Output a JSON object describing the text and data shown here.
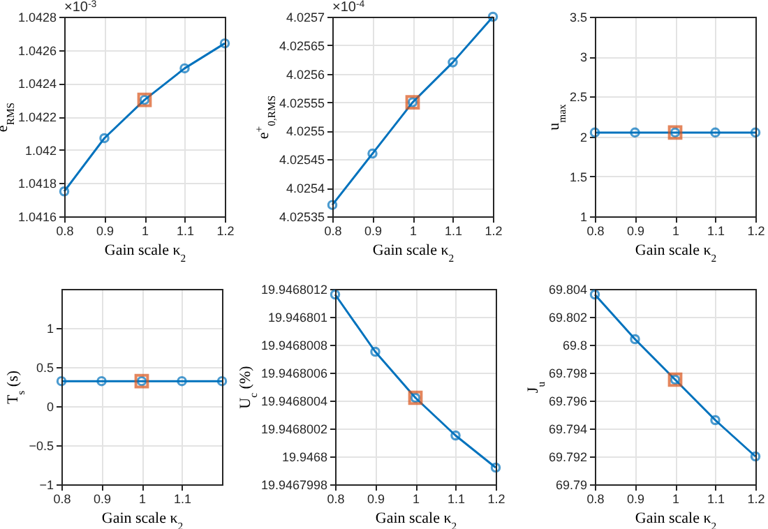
{
  "chart_data": [
    {
      "type": "line",
      "x": [
        0.8,
        0.9,
        1,
        1.1,
        1.2
      ],
      "xlabel": "Gain scale κ$_{2}$",
      "ylabel": "e$_{RMS}$",
      "annotations": [
        "×10$^{-3}$"
      ],
      "xlim": [
        0.8,
        1.2
      ],
      "xticks": [
        0.8,
        0.9,
        1,
        1.1,
        1.2
      ],
      "ylim": [
        1.0416,
        1.0428
      ],
      "yticks": [
        1.0416,
        1.0418,
        1.042,
        1.0422,
        1.0424,
        1.0426,
        1.0428
      ],
      "grid": true,
      "series": [
        {
          "color": "#0072bd",
          "marker": "circle",
          "values": [
            1.04175,
            1.04207,
            1.0423,
            1.04249,
            1.04264
          ]
        },
        {
          "type": "scatter",
          "color": "#d95319",
          "marker": "square",
          "values": [
            null,
            null,
            1.0423,
            null,
            null
          ]
        }
      ]
    },
    {
      "type": "line",
      "x": [
        0.8,
        0.9,
        1,
        1.1,
        1.2
      ],
      "xlabel": "Gain scale κ$_{2}$",
      "ylabel": "e$^{+}$$_{0,RMS}$",
      "annotations": [
        "×10$^{-4}$"
      ],
      "xlim": [
        0.8,
        1.2
      ],
      "xticks": [
        0.8,
        0.9,
        1,
        1.1,
        1.2
      ],
      "ylim": [
        4.02535,
        4.0257
      ],
      "yticks": [
        4.02535,
        4.0254,
        4.02545,
        4.0255,
        4.02555,
        4.0256,
        4.02565,
        4.0257
      ],
      "grid": true,
      "series": [
        {
          "color": "#0072bd",
          "marker": "circle",
          "values": [
            4.02537,
            4.02546,
            4.02555,
            4.02562,
            4.0257
          ]
        },
        {
          "type": "scatter",
          "color": "#d95319",
          "marker": "square",
          "values": [
            null,
            null,
            4.02555,
            null,
            null
          ]
        }
      ]
    },
    {
      "type": "line",
      "x": [
        0.8,
        0.9,
        1,
        1.1,
        1.2
      ],
      "xlabel": "Gain scale κ$_{2}$",
      "ylabel": "u$_{max}$",
      "xlim": [
        0.8,
        1.2
      ],
      "xticks": [
        0.8,
        0.9,
        1,
        1.1,
        1.2
      ],
      "ylim": [
        1,
        3.5
      ],
      "yticks": [
        1,
        1.5,
        2,
        2.5,
        3,
        3.5
      ],
      "grid": true,
      "series": [
        {
          "color": "#0072bd",
          "marker": "circle",
          "values": [
            2.05,
            2.05,
            2.05,
            2.05,
            2.05
          ]
        },
        {
          "type": "scatter",
          "color": "#d95319",
          "marker": "square",
          "values": [
            null,
            null,
            2.05,
            null,
            null
          ]
        }
      ]
    },
    {
      "type": "line",
      "x": [
        0.8,
        0.9,
        1,
        1.1,
        1.2
      ],
      "xlabel": "Gain scale κ$_{2}$",
      "ylabel": "T$_{s}$ (s)",
      "xlim": [
        0.8,
        1.2
      ],
      "xticks": [
        0.8,
        0.9,
        1,
        1.1
      ],
      "ylim": [
        -1,
        1.5
      ],
      "yticks": [
        {
          "value": -1,
          "label": "−1"
        },
        {
          "value": -0.5,
          "label": "−0.5"
        },
        0,
        0.5,
        1
      ],
      "grid": true,
      "series": [
        {
          "color": "#0072bd",
          "marker": "circle",
          "values": [
            0.32,
            0.32,
            0.32,
            0.32,
            0.32
          ]
        },
        {
          "type": "scatter",
          "color": "#d95319",
          "marker": "square",
          "values": [
            null,
            null,
            0.32,
            null,
            null
          ]
        }
      ]
    },
    {
      "type": "line",
      "x": [
        0.8,
        0.9,
        1,
        1.1,
        1.2
      ],
      "xlabel": "Gain scale κ$_{2}$",
      "ylabel": "U$_{c}$ (%)",
      "xlim": [
        0.8,
        1.2
      ],
      "xticks": [
        0.8,
        0.9,
        1,
        1.1,
        1.2
      ],
      "ylim": [
        19.9467998,
        19.9468012
      ],
      "yticks": [
        19.9467998,
        19.9468,
        19.9468002,
        19.9468004,
        19.9468006,
        19.9468008,
        19.946801,
        19.9468012
      ],
      "grid": true,
      "series": [
        {
          "color": "#0072bd",
          "marker": "circle",
          "values": [
            19.94680116,
            19.94680075,
            19.94680042,
            19.94680015,
            19.94679992
          ]
        },
        {
          "type": "scatter",
          "color": "#d95319",
          "marker": "square",
          "values": [
            null,
            null,
            19.94680042,
            null,
            null
          ]
        }
      ]
    },
    {
      "type": "line",
      "x": [
        0.8,
        0.9,
        1,
        1.1,
        1.2
      ],
      "xlabel": "Gain scale κ$_{2}$",
      "ylabel": "J$_{u}$",
      "xlim": [
        0.8,
        1.2
      ],
      "xticks": [
        0.8,
        0.9,
        1,
        1.1,
        1.2
      ],
      "ylim": [
        69.79,
        69.804
      ],
      "yticks": [
        69.79,
        69.792,
        69.794,
        69.796,
        69.798,
        69.8,
        69.802,
        69.804
      ],
      "grid": true,
      "series": [
        {
          "color": "#0072bd",
          "marker": "circle",
          "values": [
            69.8036,
            69.8004,
            69.7975,
            69.7946,
            69.792
          ]
        },
        {
          "type": "scatter",
          "color": "#d95319",
          "marker": "square",
          "values": [
            null,
            null,
            69.7975,
            null,
            null
          ]
        }
      ]
    }
  ]
}
